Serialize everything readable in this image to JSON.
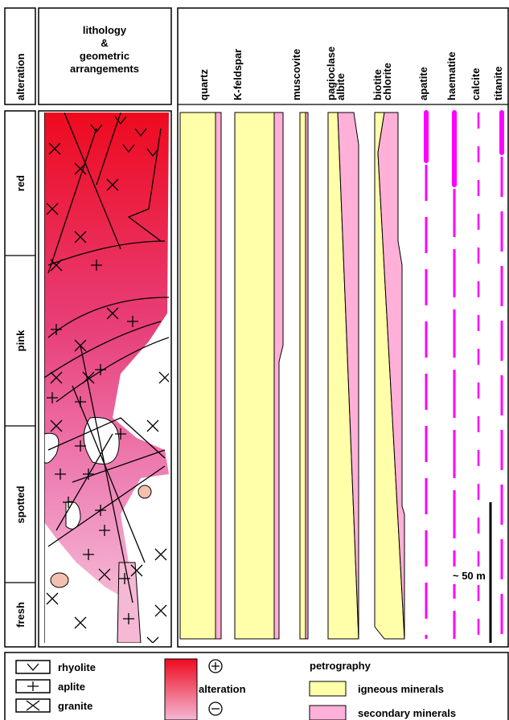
{
  "header": {
    "alteration": "alteration",
    "lithology": [
      "lithology",
      "&",
      "geometric",
      "arrangements"
    ]
  },
  "minerals": [
    "quartz",
    "K-feldspar",
    "muscovite",
    [
      "pagioclase",
      "albite"
    ],
    [
      "biotite",
      "chlorite"
    ],
    "apatite",
    "haematite",
    "calcite",
    "titanite"
  ],
  "stages": [
    "red",
    "pink",
    "spotted",
    "fresh"
  ],
  "scale": "~ 50 m",
  "legend": {
    "lithology": [
      "rhyolite",
      "aplite",
      "granite"
    ],
    "alteration": "alteration",
    "petrography": {
      "title": "petrography",
      "items": [
        "igneous minerals",
        "secondary minerals"
      ]
    }
  }
}
